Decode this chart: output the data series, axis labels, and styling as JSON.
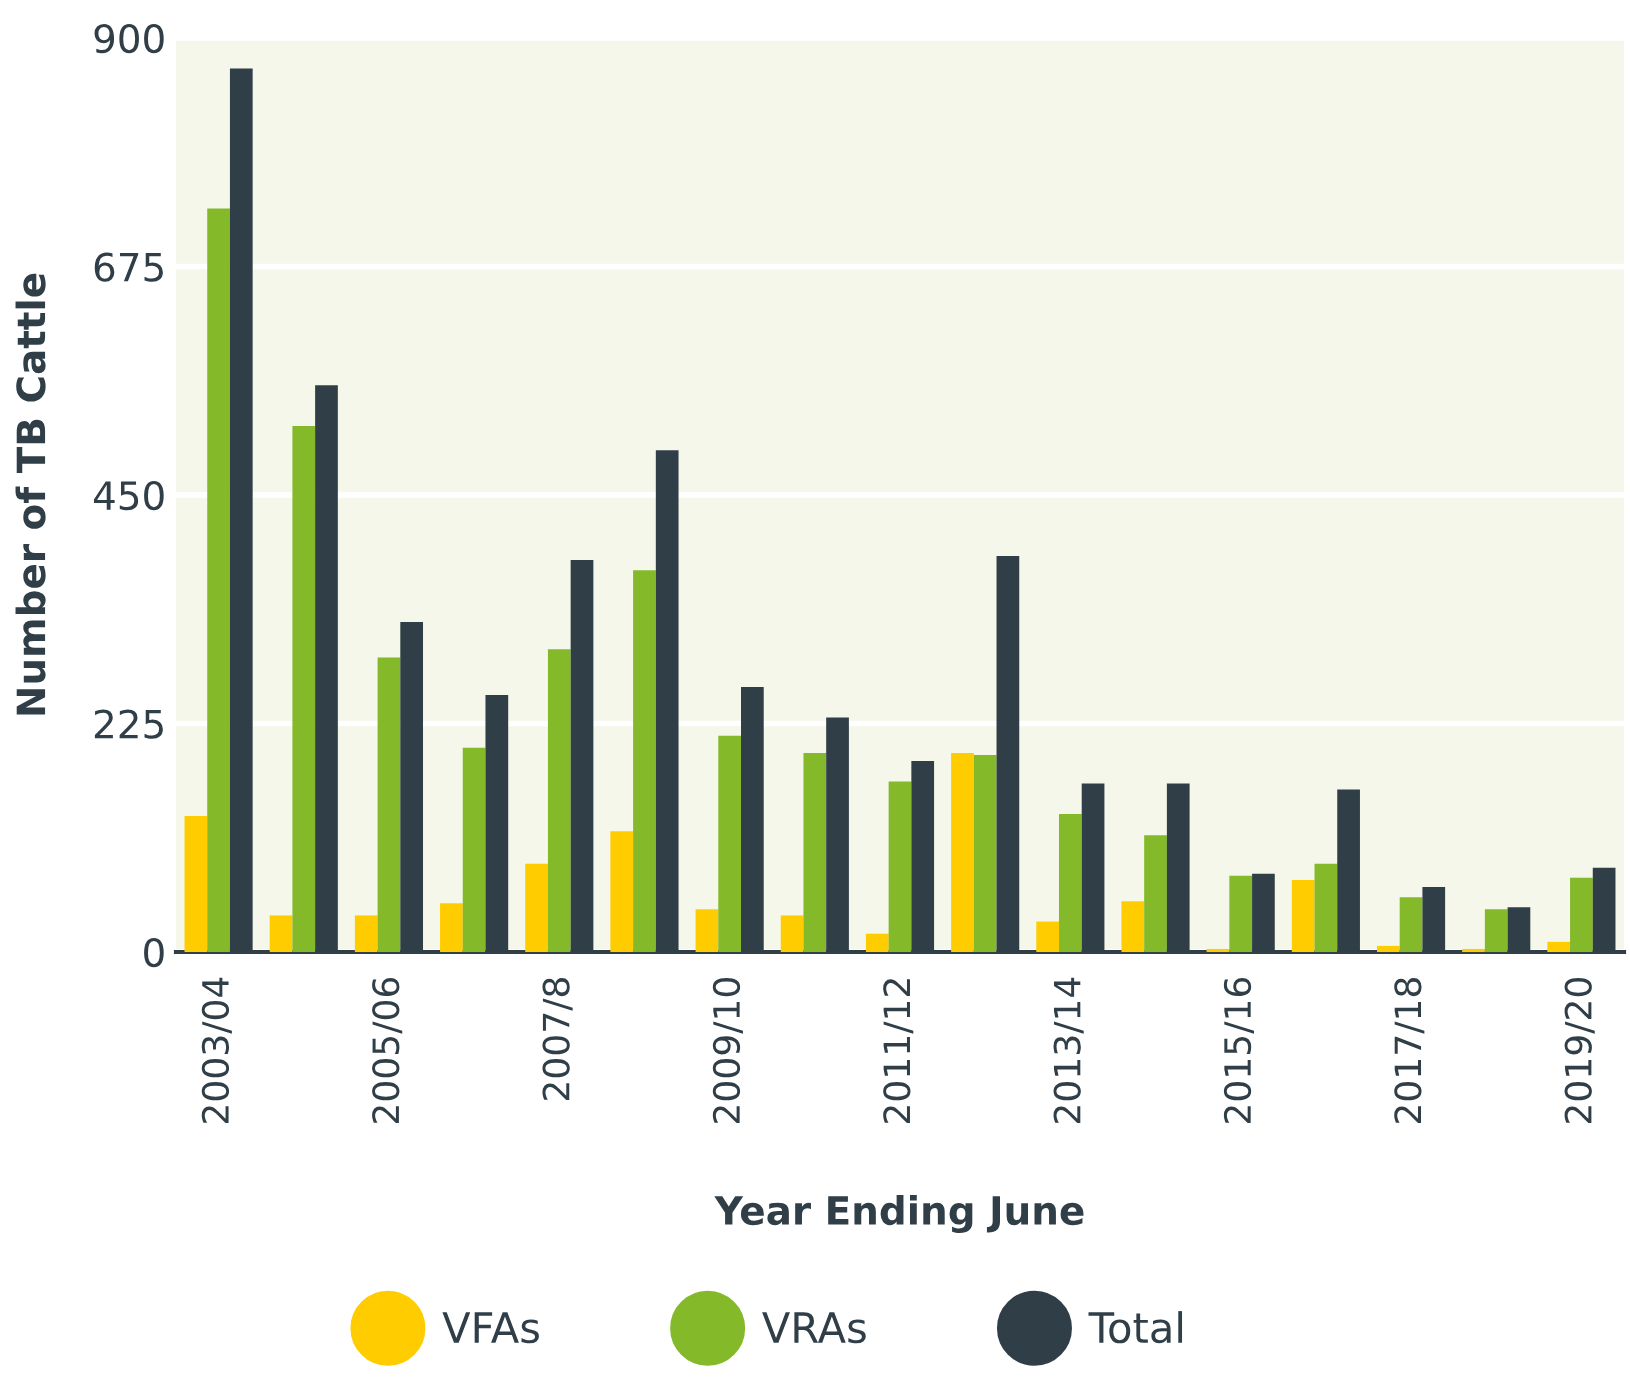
{
  "chart_data": {
    "type": "bar",
    "xlabel": "Year Ending June",
    "ylabel": "Number of TB Cattle",
    "categories": [
      "2003/04",
      null,
      "2005/06",
      null,
      "2007/8",
      null,
      "2009/10",
      null,
      "2011/12",
      null,
      "2013/14",
      null,
      "2015/16",
      null,
      "2017/18",
      null,
      "2019/20"
    ],
    "series": [
      {
        "name": "VFAs",
        "color": "#ffcc00",
        "values": [
          134,
          36,
          36,
          48,
          87,
          119,
          42,
          36,
          18,
          196,
          30,
          50,
          3,
          71,
          6,
          3,
          10
        ]
      },
      {
        "name": "VRAs",
        "color": "#84b92a",
        "values": [
          732,
          518,
          290,
          201,
          298,
          376,
          213,
          196,
          168,
          194,
          136,
          115,
          75,
          87,
          54,
          42,
          73
        ]
      },
      {
        "name": "Total",
        "color": "#303e48",
        "values": [
          870,
          558,
          325,
          253,
          386,
          494,
          261,
          231,
          188,
          390,
          166,
          166,
          77,
          160,
          64,
          44,
          83
        ]
      }
    ],
    "ylim": [
      0,
      900
    ],
    "yticks": [
      0,
      225,
      450,
      675,
      900
    ],
    "grid": "y",
    "legend": "bottom"
  }
}
